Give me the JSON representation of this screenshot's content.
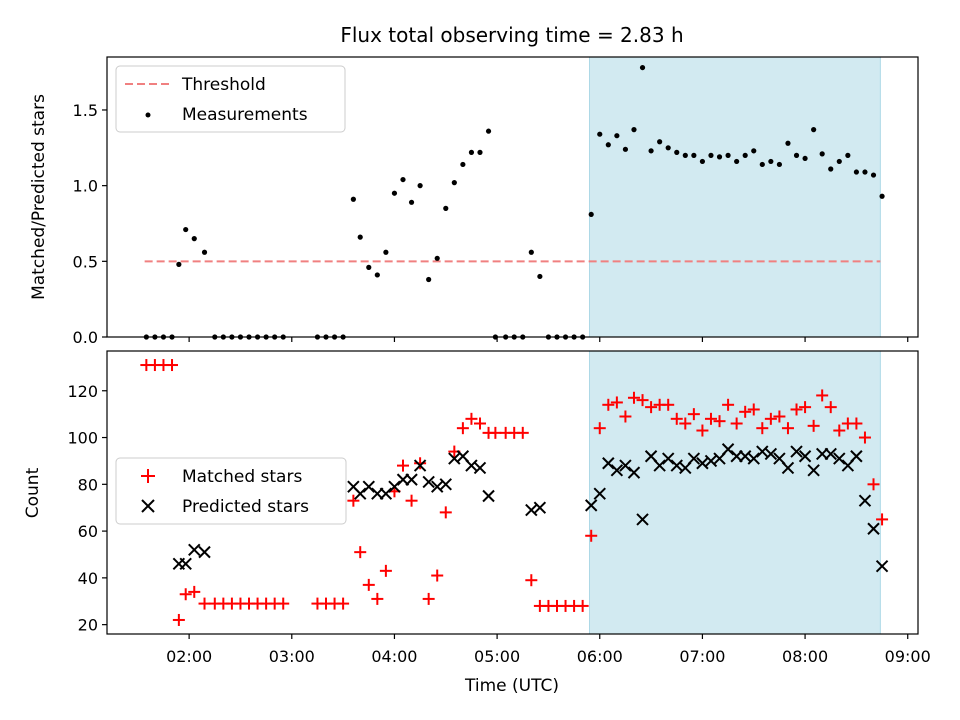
{
  "title": "Flux total observing time = 2.83 h",
  "colors": {
    "threshold": "#f08080",
    "measurements": "#000000",
    "matched": "#ff0000",
    "predicted": "#000000",
    "highlight": "#add8e6"
  },
  "chart_data": [
    {
      "type": "scatter",
      "ylabel": "Matched/Predicted stars",
      "xlabel": "",
      "xlim": [
        "01:12",
        "09:06"
      ],
      "ylim": [
        0,
        1.85
      ],
      "yticks": [
        0.0,
        0.5,
        1.0,
        1.5
      ],
      "ytick_labels": [
        "0.0",
        "0.5",
        "1.0",
        "1.5"
      ],
      "xticks": [
        "02:00",
        "03:00",
        "04:00",
        "05:00",
        "06:00",
        "07:00",
        "08:00",
        "09:00"
      ],
      "show_xtick_labels": false,
      "highlight_span": [
        "05:54",
        "08:44"
      ],
      "legend": {
        "placement": "upper-left",
        "entries": [
          "Threshold",
          "Measurements"
        ]
      },
      "series": [
        {
          "name": "Threshold",
          "kind": "dashed-line",
          "x": [
            "01:34",
            "08:44"
          ],
          "y": [
            0.5,
            0.5
          ]
        },
        {
          "name": "Measurements",
          "kind": "dots",
          "x": [
            "01:35",
            "01:40",
            "01:45",
            "01:50",
            "01:54",
            "01:58",
            "02:03",
            "02:09",
            "02:15",
            "02:20",
            "02:25",
            "02:30",
            "02:35",
            "02:40",
            "02:45",
            "02:50",
            "02:55",
            "03:15",
            "03:20",
            "03:25",
            "03:30",
            "03:36",
            "03:40",
            "03:45",
            "03:50",
            "03:55",
            "04:00",
            "04:05",
            "04:10",
            "04:15",
            "04:20",
            "04:25",
            "04:30",
            "04:35",
            "04:40",
            "04:45",
            "04:50",
            "04:55",
            "04:59",
            "05:05",
            "05:10",
            "05:15",
            "05:20",
            "05:25",
            "05:30",
            "05:35",
            "05:40",
            "05:45",
            "05:50",
            "05:55",
            "06:00",
            "06:05",
            "06:10",
            "06:15",
            "06:20",
            "06:25",
            "06:30",
            "06:35",
            "06:40",
            "06:45",
            "06:50",
            "06:55",
            "07:00",
            "07:05",
            "07:10",
            "07:15",
            "07:20",
            "07:25",
            "07:30",
            "07:35",
            "07:40",
            "07:45",
            "07:50",
            "07:55",
            "08:00",
            "08:05",
            "08:10",
            "08:15",
            "08:20",
            "08:25",
            "08:30",
            "08:35",
            "08:40",
            "08:45"
          ],
          "y": [
            0,
            0,
            0,
            0,
            0.48,
            0.71,
            0.65,
            0.56,
            0,
            0,
            0,
            0,
            0,
            0,
            0,
            0,
            0,
            0,
            0,
            0,
            0,
            0.91,
            0.66,
            0.46,
            0.41,
            0.56,
            0.95,
            1.04,
            0.89,
            1.0,
            0.38,
            0.52,
            0.85,
            1.02,
            1.14,
            1.22,
            1.22,
            1.36,
            0,
            0,
            0,
            0,
            0.56,
            0.4,
            0,
            0,
            0,
            0,
            0,
            0.81,
            1.34,
            1.27,
            1.33,
            1.24,
            1.37,
            1.78,
            1.23,
            1.29,
            1.25,
            1.22,
            1.2,
            1.2,
            1.16,
            1.2,
            1.19,
            1.2,
            1.16,
            1.2,
            1.23,
            1.14,
            1.16,
            1.14,
            1.28,
            1.2,
            1.18,
            1.37,
            1.21,
            1.11,
            1.16,
            1.2,
            1.09,
            1.09,
            1.07,
            0.93
          ]
        }
      ]
    },
    {
      "type": "scatter",
      "ylabel": "Count",
      "xlabel": "Time (UTC)",
      "xlim": [
        "01:12",
        "09:06"
      ],
      "ylim": [
        16,
        137
      ],
      "yticks": [
        20,
        40,
        60,
        80,
        100,
        120
      ],
      "ytick_labels": [
        "20",
        "40",
        "60",
        "80",
        "100",
        "120"
      ],
      "xticks": [
        "02:00",
        "03:00",
        "04:00",
        "05:00",
        "06:00",
        "07:00",
        "08:00",
        "09:00"
      ],
      "xtick_labels": [
        "02:00",
        "03:00",
        "04:00",
        "05:00",
        "06:00",
        "07:00",
        "08:00",
        "09:00"
      ],
      "highlight_span": [
        "05:54",
        "08:44"
      ],
      "legend": {
        "placement": "center-left",
        "entries": [
          "Matched stars",
          "Predicted stars"
        ]
      },
      "series": [
        {
          "name": "Matched stars",
          "kind": "plus",
          "x": [
            "01:35",
            "01:40",
            "01:45",
            "01:50",
            "01:54",
            "01:58",
            "02:03",
            "02:09",
            "02:15",
            "02:20",
            "02:25",
            "02:30",
            "02:35",
            "02:40",
            "02:45",
            "02:50",
            "02:55",
            "03:15",
            "03:20",
            "03:25",
            "03:30",
            "03:36",
            "03:40",
            "03:45",
            "03:50",
            "03:55",
            "04:00",
            "04:05",
            "04:10",
            "04:15",
            "04:20",
            "04:25",
            "04:30",
            "04:35",
            "04:40",
            "04:45",
            "04:50",
            "04:55",
            "04:59",
            "05:05",
            "05:10",
            "05:15",
            "05:20",
            "05:25",
            "05:30",
            "05:35",
            "05:40",
            "05:45",
            "05:50",
            "05:55",
            "06:00",
            "06:05",
            "06:10",
            "06:15",
            "06:20",
            "06:25",
            "06:30",
            "06:35",
            "06:40",
            "06:45",
            "06:50",
            "06:55",
            "07:00",
            "07:05",
            "07:10",
            "07:15",
            "07:20",
            "07:25",
            "07:30",
            "07:35",
            "07:40",
            "07:45",
            "07:50",
            "07:55",
            "08:00",
            "08:05",
            "08:10",
            "08:15",
            "08:20",
            "08:25",
            "08:30",
            "08:35",
            "08:40",
            "08:45"
          ],
          "y": [
            131,
            131,
            131,
            131,
            22,
            33,
            34,
            29,
            29,
            29,
            29,
            29,
            29,
            29,
            29,
            29,
            29,
            29,
            29,
            29,
            29,
            73,
            51,
            37,
            31,
            43,
            77,
            88,
            73,
            89,
            31,
            41,
            68,
            94,
            104,
            108,
            106,
            102,
            102,
            102,
            102,
            102,
            39,
            28,
            28,
            28,
            28,
            28,
            28,
            58,
            104,
            114,
            115,
            109,
            117,
            116,
            113,
            114,
            114,
            108,
            106,
            110,
            103,
            108,
            107,
            114,
            106,
            111,
            112,
            104,
            108,
            109,
            104,
            112,
            113,
            105,
            118,
            113,
            103,
            106,
            106,
            100,
            80,
            65
          ]
        },
        {
          "name": "Predicted stars",
          "kind": "cross",
          "x": [
            "01:54",
            "01:58",
            "02:03",
            "02:09",
            "03:36",
            "03:40",
            "03:45",
            "03:50",
            "03:55",
            "04:00",
            "04:05",
            "04:10",
            "04:15",
            "04:20",
            "04:25",
            "04:30",
            "04:35",
            "04:40",
            "04:45",
            "04:50",
            "04:55",
            "05:20",
            "05:25",
            "05:55",
            "06:00",
            "06:05",
            "06:10",
            "06:15",
            "06:20",
            "06:25",
            "06:30",
            "06:35",
            "06:40",
            "06:45",
            "06:50",
            "06:55",
            "07:00",
            "07:05",
            "07:10",
            "07:15",
            "07:20",
            "07:25",
            "07:30",
            "07:35",
            "07:40",
            "07:45",
            "07:50",
            "07:55",
            "08:00",
            "08:05",
            "08:10",
            "08:15",
            "08:20",
            "08:25",
            "08:30",
            "08:35",
            "08:40",
            "08:45"
          ],
          "y": [
            46,
            46,
            52,
            51,
            79,
            76,
            79,
            76,
            76,
            79,
            82,
            82,
            88,
            81,
            79,
            80,
            91,
            92,
            88,
            87,
            75,
            69,
            70,
            71,
            76,
            89,
            86,
            88,
            85,
            65,
            92,
            88,
            91,
            88,
            87,
            91,
            89,
            90,
            91,
            95,
            92,
            92,
            91,
            94,
            93,
            91,
            87,
            94,
            92,
            86,
            93,
            93,
            91,
            88,
            92,
            73,
            61,
            45
          ]
        }
      ]
    }
  ]
}
